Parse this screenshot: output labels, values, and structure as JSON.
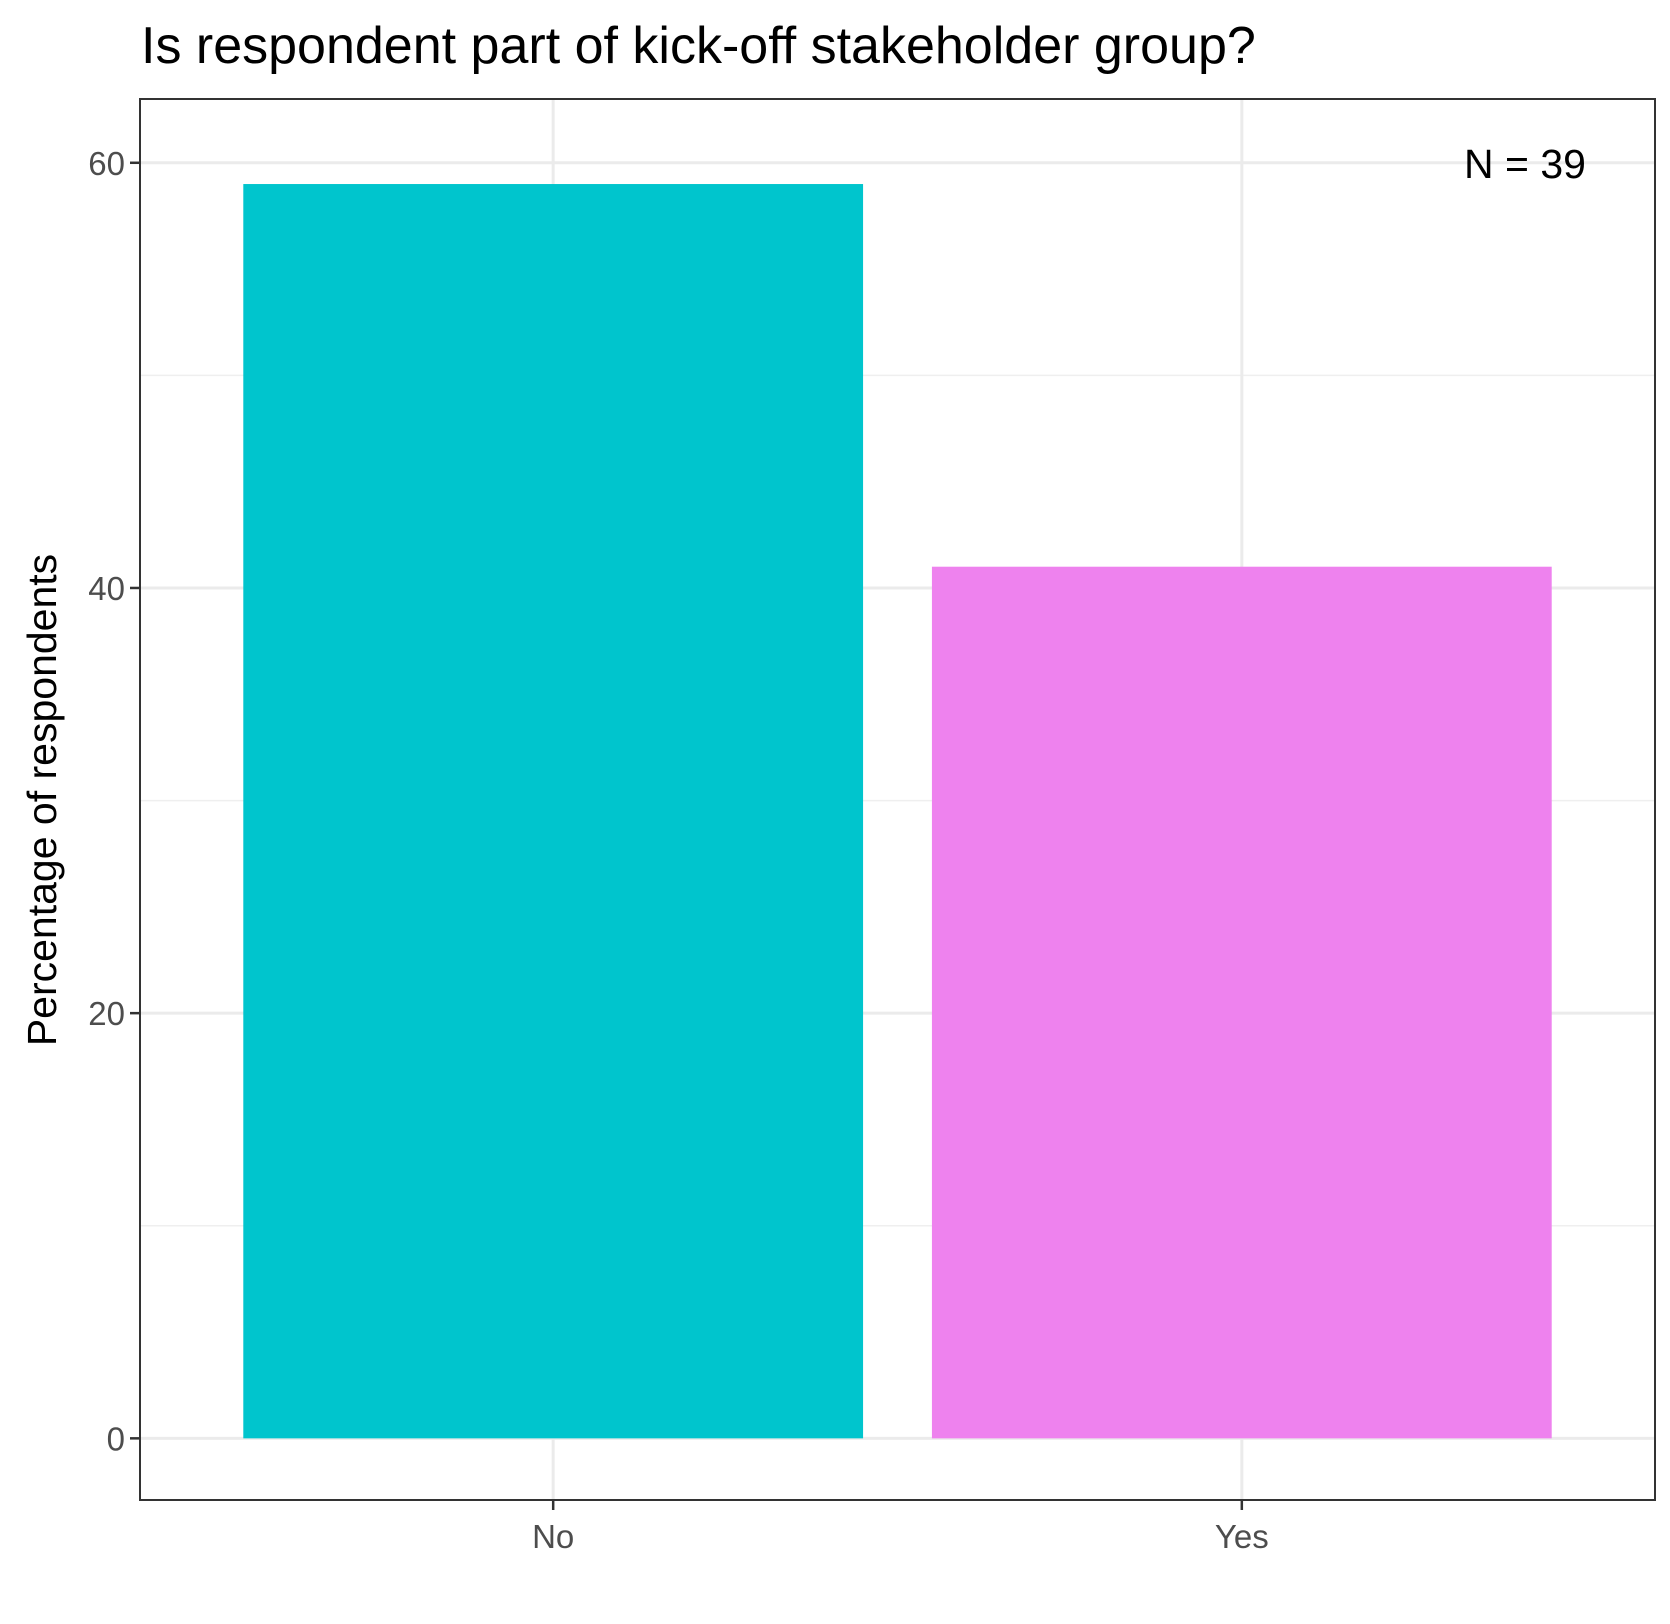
{
  "chart_data": {
    "type": "bar",
    "title": "Is respondent part of kick-off stakeholder group?",
    "xlabel": "",
    "ylabel": "Percentage of respondents",
    "categories": [
      "No",
      "Yes"
    ],
    "values": [
      59.0,
      41.0
    ],
    "ylim": [
      -2.9,
      63.0
    ],
    "yticks": [
      0,
      20,
      40,
      60
    ],
    "ytick_labels": [
      "0",
      "20",
      "40",
      "60"
    ],
    "grid": true,
    "legend": "none",
    "annotation": "N = 39",
    "colors": [
      "#00C5CD",
      "#EE82EE"
    ]
  }
}
